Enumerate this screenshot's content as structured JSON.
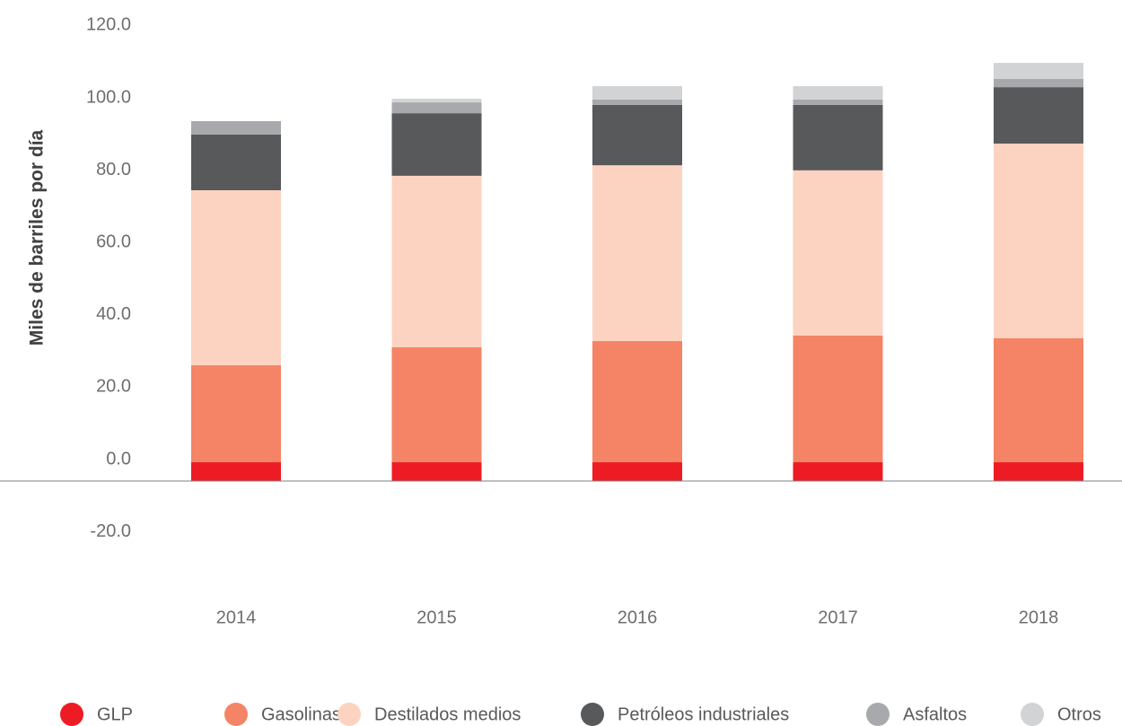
{
  "chart_data": {
    "type": "stacked_bar",
    "y_label": "Miles de barriles por día",
    "categories": [
      "2014",
      "2015",
      "2016",
      "2017",
      "2018"
    ],
    "series": [
      {
        "name": "GLP",
        "color": "#ed1c24",
        "values": [
          5.2,
          5.2,
          5.2,
          5.2,
          5.2
        ]
      },
      {
        "name": "Gasolinas",
        "color": "#f48465",
        "values": [
          26.8,
          31.8,
          33.5,
          35.0,
          34.3
        ]
      },
      {
        "name": "Destilados medios",
        "color": "#fcd3c1",
        "values": [
          48.4,
          47.4,
          48.6,
          45.7,
          53.8
        ]
      },
      {
        "name": "Petróleos industriales",
        "color": "#58595b",
        "values": [
          15.4,
          17.3,
          16.7,
          18.1,
          15.6
        ]
      },
      {
        "name": "Asfaltos",
        "color": "#a7a9ac",
        "values": [
          3.7,
          3.0,
          1.5,
          1.5,
          2.3
        ]
      },
      {
        "name": "Otros",
        "color": "#d1d3d4",
        "values": [
          0,
          1.0,
          3.7,
          3.7,
          4.4
        ]
      }
    ],
    "ylim": [
      -20,
      120
    ],
    "yticks": [
      {
        "value": -20,
        "label": "-20.0"
      },
      {
        "value": 0,
        "label": "0.0"
      },
      {
        "value": 20,
        "label": "20.0"
      },
      {
        "value": 40,
        "label": "40.0"
      },
      {
        "value": 60,
        "label": "60.0"
      },
      {
        "value": 80,
        "label": "80.0"
      },
      {
        "value": 100,
        "label": "100.0"
      },
      {
        "value": 120,
        "label": "120.0"
      }
    ],
    "grid": false,
    "legend": "bottom"
  }
}
